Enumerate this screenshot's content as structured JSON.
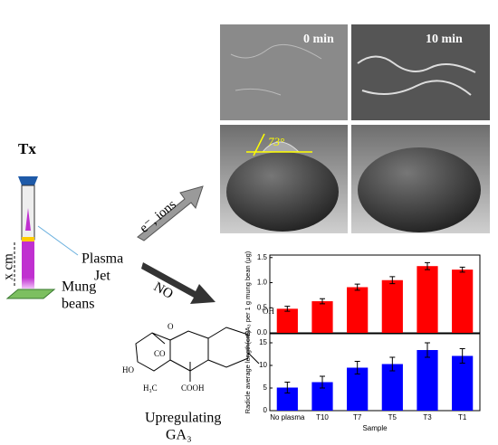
{
  "diagram": {
    "tx": "Tx",
    "distance": "x cm",
    "plasma": "Plasma",
    "jet": "Jet",
    "mung": "Mung",
    "beans": "beans",
    "arrow_ions": "e⁻, ions",
    "arrow_no": "NO",
    "upregulating": "Upregulating",
    "ga3": "GA₃",
    "photo_labels": [
      "0 min",
      "10 min"
    ],
    "angle": "73°",
    "molecule_labels": [
      "OH",
      "HO",
      "CO",
      "O",
      "H₃C",
      "COOH"
    ]
  },
  "chart_data": [
    {
      "type": "bar",
      "ylabel": "GA₃ per 1 g mung bean (μg)",
      "categories": [
        null,
        null,
        null,
        null,
        null,
        null
      ],
      "values": [
        0.48,
        0.63,
        0.91,
        1.05,
        1.33,
        1.26
      ],
      "errors": [
        0.05,
        0.05,
        0.06,
        0.07,
        0.07,
        0.05
      ],
      "color": "#ff0000",
      "ylim": [
        0,
        1.55
      ],
      "yticks": [
        {
          "value": 0,
          "label": "0.0"
        },
        0.5,
        {
          "value": 1,
          "label": "1.0"
        },
        1.5
      ]
    },
    {
      "type": "bar",
      "ylabel": "Radicle average length(cm)",
      "xlabel": "Sample",
      "categories": [
        "No plasma",
        "T10",
        "T7",
        "T5",
        "T3",
        "T1"
      ],
      "values": [
        5.1,
        6.3,
        9.5,
        10.3,
        13.4,
        12.1
      ],
      "errors": [
        1.2,
        1.3,
        1.4,
        1.5,
        1.6,
        1.6
      ],
      "color": "#0000ff",
      "ylim": [
        0,
        17
      ],
      "yticks": [
        0,
        5,
        10,
        15
      ]
    }
  ]
}
